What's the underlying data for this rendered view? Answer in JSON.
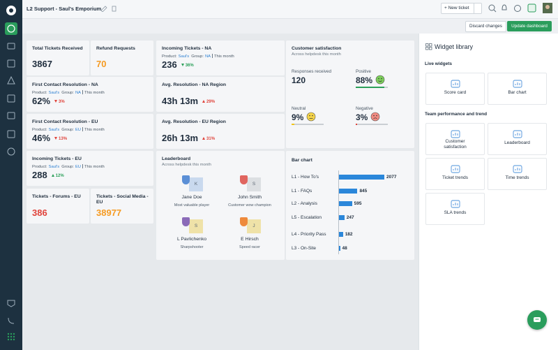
{
  "header": {
    "title": "L2 Support - Saul's Emporium",
    "new_ticket": "+ New ticket",
    "discard": "Discard changes",
    "update": "Update dashboard"
  },
  "cards": [
    {
      "title": "Total Tickets Received",
      "value": "3867"
    },
    {
      "title": "Refund Requests",
      "value": "70"
    },
    {
      "title": "Incoming Tickets - NA",
      "product_label": "Product:",
      "product": "Saul's",
      "group_label": "Group:",
      "group": "NA",
      "period": "This month",
      "value": "236",
      "change": "36%"
    },
    {
      "title": "First Contact Resolution - NA",
      "product_label": "Product:",
      "product": "Saul's",
      "group_label": "Group:",
      "group": "NA",
      "period": "This month",
      "value": "62%",
      "change": "3%"
    },
    {
      "title": "Avg. Resolution - NA Region",
      "value": "43h 13m",
      "change": "29%"
    },
    {
      "title": "First Contact Resolution - EU",
      "product_label": "Product:",
      "product": "Saul's",
      "group_label": "Group:",
      "group": "EU",
      "period": "This month",
      "value": "46%",
      "change": "13%"
    },
    {
      "title": "Avg. Resolution - EU Region",
      "value": "26h 13m",
      "change": "31%"
    },
    {
      "title": "Incoming Tickets - EU",
      "product_label": "Product:",
      "product": "Saul's",
      "group_label": "Group:",
      "group": "EU",
      "period": "This month",
      "value": "288",
      "change": "12%"
    },
    {
      "title": "Tickets - Forums - EU",
      "value": "386"
    },
    {
      "title": "Tickets - Social Media - EU",
      "value": "38977"
    }
  ],
  "satisfaction": {
    "title": "Customer satisfaction",
    "subtitle": "Across helpdesk this month",
    "responses_label": "Responses received",
    "responses": "120",
    "positive_label": "Positive",
    "positive": "88%",
    "neutral_label": "Neutral",
    "neutral": "9%",
    "negative_label": "Negative",
    "negative": "3%"
  },
  "leaderboard": {
    "title": "Leaderboard",
    "subtitle": "Across helpdesk this month",
    "entries": [
      {
        "initial": "K",
        "name": "Jane Doe",
        "award": "Most valuable player"
      },
      {
        "initial": "S",
        "name": "John Smith",
        "award": "Customer wow champion"
      },
      {
        "initial": "S",
        "name": "L Pavlichenko",
        "award": "Sharpshooter"
      },
      {
        "initial": "J",
        "name": "E Hirsch",
        "award": "Speed racer"
      }
    ]
  },
  "bar_chart": {
    "type": "bar",
    "title": "Bar chart",
    "color": "#2b87da",
    "categories": [
      "L1 - How To's",
      "L1 - FAQs",
      "L2 - Analysis",
      "L5 - Escalation",
      "L4 - Priority Pass",
      "L3 - On-Site"
    ],
    "values": [
      2077,
      845,
      595,
      247,
      182,
      48
    ]
  },
  "widget_library": {
    "title": "Widget library",
    "live_heading": "Live widgets",
    "live": [
      "Score card",
      "Bar chart"
    ],
    "team_heading": "Team performance and trend",
    "team": [
      "Customer satisfaction",
      "Leaderboard",
      "Ticket trends",
      "Time trends",
      "SLA trends"
    ]
  }
}
